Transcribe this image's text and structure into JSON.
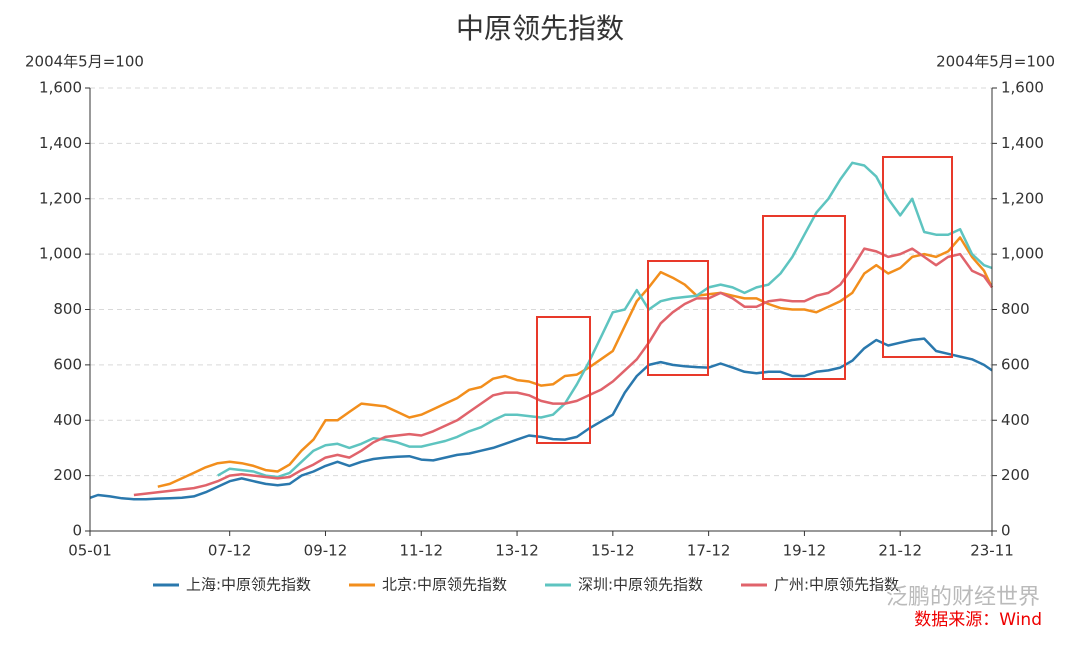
{
  "chart_data": {
    "type": "line",
    "title": "中原领先指数",
    "y_axis_label": "2004年5月=100",
    "y2_axis_label": "2004年5月=100",
    "source": "数据来源：Wind",
    "watermark": "泛鹏的财经世界",
    "x": [
      "05-01",
      "05-03",
      "05-06",
      "05-09",
      "05-12",
      "06-03",
      "06-06",
      "06-09",
      "06-12",
      "07-03",
      "07-06",
      "07-09",
      "07-12",
      "08-03",
      "08-06",
      "08-09",
      "08-12",
      "09-03",
      "09-06",
      "09-09",
      "09-12",
      "10-03",
      "10-06",
      "10-09",
      "10-12",
      "11-03",
      "11-06",
      "11-09",
      "11-12",
      "12-03",
      "12-06",
      "12-09",
      "12-12",
      "13-03",
      "13-06",
      "13-09",
      "13-12",
      "14-03",
      "14-06",
      "14-09",
      "14-12",
      "15-03",
      "15-06",
      "15-09",
      "15-12",
      "16-03",
      "16-06",
      "16-09",
      "16-12",
      "17-03",
      "17-06",
      "17-09",
      "17-12",
      "18-03",
      "18-06",
      "18-09",
      "18-12",
      "19-03",
      "19-06",
      "19-09",
      "19-12",
      "20-03",
      "20-06",
      "20-09",
      "20-12",
      "21-03",
      "21-06",
      "21-09",
      "21-12",
      "22-03",
      "22-06",
      "22-09",
      "22-12",
      "23-03",
      "23-06",
      "23-09",
      "23-11"
    ],
    "xlim": [
      "05-01",
      "23-11"
    ],
    "xticks": [
      "05-01",
      "07-12",
      "09-12",
      "11-12",
      "13-12",
      "15-12",
      "17-12",
      "19-12",
      "21-12",
      "23-11"
    ],
    "ylim": [
      0,
      1600
    ],
    "yticks": [
      0,
      200,
      400,
      600,
      800,
      {
        "value": 1000,
        "label": "1,000"
      },
      {
        "value": 1200,
        "label": "1,200"
      },
      {
        "value": 1400,
        "label": "1,400"
      },
      {
        "value": 1600,
        "label": "1,600"
      }
    ],
    "y2lim": [
      0,
      1600
    ],
    "y2ticks": [
      0,
      200,
      400,
      600,
      800,
      {
        "value": 1000,
        "label": "1,000"
      },
      {
        "value": 1200,
        "label": "1,200"
      },
      {
        "value": 1400,
        "label": "1,400"
      },
      {
        "value": 1600,
        "label": "1,600"
      }
    ],
    "grid": true,
    "legend": "bottom",
    "series": [
      {
        "name": "上海:中原领先指数",
        "color": "#2a78ad",
        "values": [
          120,
          130,
          125,
          118,
          115,
          115,
          117,
          118,
          120,
          125,
          140,
          160,
          180,
          190,
          180,
          170,
          165,
          170,
          200,
          215,
          235,
          250,
          235,
          250,
          260,
          265,
          268,
          270,
          258,
          255,
          265,
          275,
          280,
          290,
          300,
          315,
          330,
          345,
          340,
          332,
          330,
          340,
          370,
          395,
          420,
          500,
          560,
          600,
          610,
          600,
          595,
          592,
          590,
          605,
          590,
          575,
          570,
          575,
          575,
          560,
          560,
          575,
          580,
          590,
          615,
          660,
          690,
          670,
          680,
          690,
          695,
          650,
          640,
          630,
          620,
          600,
          580
        ]
      },
      {
        "name": "北京:中原领先指数",
        "color": "#f28e1c",
        "values": [
          null,
          null,
          null,
          null,
          null,
          null,
          160,
          170,
          190,
          210,
          230,
          245,
          250,
          245,
          235,
          220,
          215,
          240,
          290,
          330,
          400,
          400,
          430,
          460,
          455,
          450,
          430,
          410,
          420,
          440,
          460,
          480,
          510,
          520,
          550,
          560,
          545,
          540,
          525,
          530,
          560,
          565,
          590,
          620,
          650,
          740,
          830,
          880,
          935,
          915,
          890,
          850,
          855,
          860,
          850,
          840,
          840,
          820,
          805,
          800,
          800,
          790,
          810,
          830,
          860,
          930,
          960,
          930,
          950,
          990,
          1000,
          990,
          1010,
          1060,
          990,
          940,
          880
        ]
      },
      {
        "name": "深圳:中原领先指数",
        "color": "#5ec4c0",
        "values": [
          null,
          null,
          null,
          null,
          null,
          null,
          null,
          null,
          null,
          null,
          null,
          200,
          225,
          220,
          215,
          200,
          195,
          210,
          250,
          290,
          310,
          315,
          300,
          315,
          335,
          330,
          320,
          305,
          305,
          315,
          325,
          340,
          360,
          375,
          400,
          420,
          420,
          415,
          410,
          420,
          460,
          530,
          610,
          700,
          790,
          800,
          870,
          800,
          830,
          840,
          845,
          850,
          880,
          890,
          880,
          860,
          880,
          890,
          930,
          990,
          1070,
          1150,
          1200,
          1270,
          1330,
          1320,
          1280,
          1200,
          1140,
          1200,
          1080,
          1070,
          1070,
          1090,
          1000,
          960,
          950
        ]
      },
      {
        "name": "广州:中原领先指数",
        "color": "#e0636b",
        "values": [
          null,
          null,
          null,
          null,
          130,
          135,
          140,
          145,
          150,
          155,
          165,
          180,
          200,
          205,
          200,
          195,
          190,
          195,
          220,
          240,
          265,
          275,
          265,
          290,
          320,
          340,
          345,
          350,
          345,
          360,
          380,
          400,
          430,
          460,
          490,
          500,
          500,
          490,
          470,
          460,
          460,
          470,
          490,
          510,
          540,
          580,
          620,
          680,
          750,
          790,
          820,
          840,
          840,
          860,
          840,
          810,
          810,
          830,
          835,
          830,
          830,
          850,
          860,
          890,
          950,
          1020,
          1010,
          990,
          1000,
          1020,
          990,
          960,
          990,
          1000,
          940,
          920,
          880
        ]
      }
    ]
  }
}
